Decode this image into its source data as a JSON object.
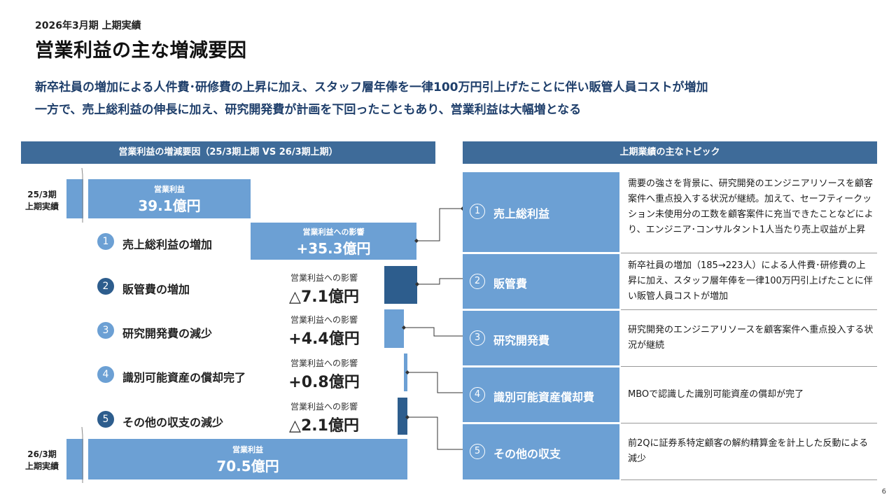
{
  "header": {
    "period": "2026年3月期 上期実績",
    "title": "営業利益の主な増減要因",
    "lead_1": "新卒社員の増加による人件費･研修費の上昇に加え、スタッフ層年俸を一律100万円引上げたことに伴い販管人員コストが増加",
    "lead_2": "一方で、売上総利益の伸長に加え、研究開発費が計画を下回ったこともあり、営業利益は大幅増となる"
  },
  "left_panel": {
    "heading": "営業利益の増減要因（25/3期上期 VS 26/3期上期）",
    "start": {
      "side_1": "25/3期",
      "side_2": "上期実績",
      "label": "営業利益",
      "value": "39.1億円"
    },
    "end": {
      "side_1": "26/3期",
      "side_2": "上期実績",
      "label": "営業利益",
      "value": "70.5億円"
    },
    "impact_label": "営業利益への影響",
    "factors": [
      {
        "num": "1",
        "label": "売上総利益の増加",
        "value": "+35.3億円"
      },
      {
        "num": "2",
        "label": "販管費の増加",
        "value": "△7.1億円"
      },
      {
        "num": "3",
        "label": "研究開発費の減少",
        "value": "+4.4億円"
      },
      {
        "num": "4",
        "label": "識別可能資産の償却完了",
        "value": "+0.8億円"
      },
      {
        "num": "5",
        "label": "その他の収支の減少",
        "value": "△2.1億円"
      }
    ]
  },
  "right_panel": {
    "heading": "上期業績の主なトピック",
    "topics": [
      {
        "num": "1",
        "label": "売上総利益",
        "desc": "需要の強さを背景に、研究開発のエンジニアリソースを顧客案件へ重点投入する状況が継続。加えて、セーフティークッション未使用分の工数を顧客案件に充当できたことなどにより、エンジニア･コンサルタント1人当たり売上収益が上昇"
      },
      {
        "num": "2",
        "label": "販管費",
        "desc": "新卒社員の増加（185→223人）による人件費･研修費の上昇に加え、スタッフ層年俸を一律100万円引上げたことに伴い販管人員コストが増加"
      },
      {
        "num": "3",
        "label": "研究開発費",
        "desc": "研究開発のエンジニアリソースを顧客案件へ重点投入する状況が継続"
      },
      {
        "num": "4",
        "label": "識別可能資産償却費",
        "desc": "MBOで認識した識別可能資産の償却が完了"
      },
      {
        "num": "5",
        "label": "その他の収支",
        "desc": "前2Qに証券系特定顧客の解約精算金を計上した反動による減少"
      }
    ]
  },
  "page_number": "6",
  "colors": {
    "light_blue": "#6ca0d4",
    "dark_blue": "#2d5d8d",
    "header_blue": "#3e6b99",
    "lead_text": "#1f3f6b"
  }
}
